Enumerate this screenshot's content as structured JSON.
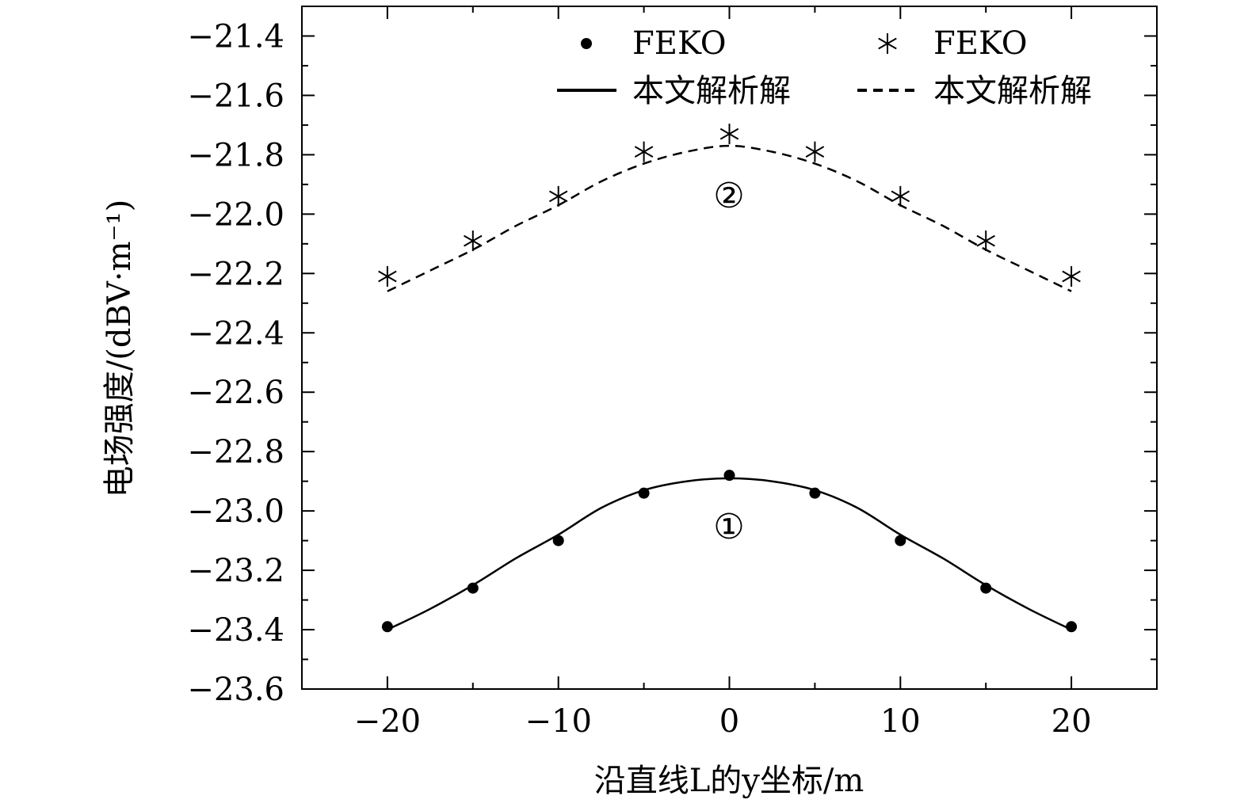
{
  "chart_data": {
    "type": "line",
    "xlabel": "沿直线L的y坐标/m",
    "ylabel": "电场强度/(dBV·m⁻¹)",
    "xlim": [
      -25,
      25
    ],
    "ylim": [
      -23.6,
      -21.3
    ],
    "xticks": [
      -20,
      -10,
      0,
      10,
      20
    ],
    "xtick_labels": [
      "−20",
      "−10",
      "0",
      "10",
      "20"
    ],
    "yticks": [
      -21.4,
      -21.6,
      -21.8,
      -22.0,
      -22.2,
      -22.4,
      -22.6,
      -22.8,
      -23.0,
      -23.2,
      -23.4,
      -23.6
    ],
    "ytick_labels": [
      "−21.4",
      "−21.6",
      "−21.8",
      "−22.0",
      "−22.2",
      "−22.4",
      "−22.6",
      "−22.8",
      "−23.0",
      "−23.2",
      "−23.4",
      "−23.6"
    ],
    "grid": false,
    "legend_position": "top",
    "legend": [
      {
        "label": "FEKO",
        "marker": "dot",
        "color": "#000000"
      },
      {
        "label": "FEKO",
        "marker": "asterisk",
        "color": "#000000"
      },
      {
        "label": "本文解析解",
        "line": "solid",
        "color": "#000000"
      },
      {
        "label": "本文解析解",
        "line": "dashed",
        "color": "#000000"
      }
    ],
    "curve_labels": [
      "①",
      "②"
    ],
    "series": [
      {
        "label": "①",
        "line_style": "solid",
        "marker": "dot",
        "line_x": [
          -20,
          -17.5,
          -15,
          -12.5,
          -10,
          -7.5,
          -5,
          -2.5,
          0,
          2.5,
          5,
          7.5,
          10,
          12.5,
          15,
          17.5,
          20
        ],
        "line_y": [
          -23.4,
          -23.33,
          -23.25,
          -23.16,
          -23.08,
          -22.99,
          -22.93,
          -22.9,
          -22.89,
          -22.9,
          -22.93,
          -22.99,
          -23.08,
          -23.16,
          -23.25,
          -23.33,
          -23.4
        ],
        "points_x": [
          -20,
          -15,
          -10,
          -5,
          0,
          5,
          10,
          15,
          20
        ],
        "points_y": [
          -23.39,
          -23.26,
          -23.1,
          -22.94,
          -22.88,
          -22.94,
          -23.1,
          -23.26,
          -23.39
        ]
      },
      {
        "label": "②",
        "line_style": "dashed",
        "marker": "asterisk",
        "line_x": [
          -20,
          -17.5,
          -15,
          -12.5,
          -10,
          -7.5,
          -5,
          -2.5,
          0,
          2.5,
          5,
          7.5,
          10,
          12.5,
          15,
          17.5,
          20
        ],
        "line_y": [
          -22.26,
          -22.19,
          -22.12,
          -22.04,
          -21.97,
          -21.89,
          -21.83,
          -21.79,
          -21.77,
          -21.79,
          -21.83,
          -21.89,
          -21.97,
          -22.04,
          -22.12,
          -22.19,
          -22.26
        ],
        "points_x": [
          -20,
          -15,
          -10,
          -5,
          0,
          5,
          10,
          15,
          20
        ],
        "points_y": [
          -22.21,
          -22.09,
          -21.94,
          -21.79,
          -21.73,
          -21.79,
          -21.94,
          -22.09,
          -22.21
        ]
      }
    ]
  }
}
